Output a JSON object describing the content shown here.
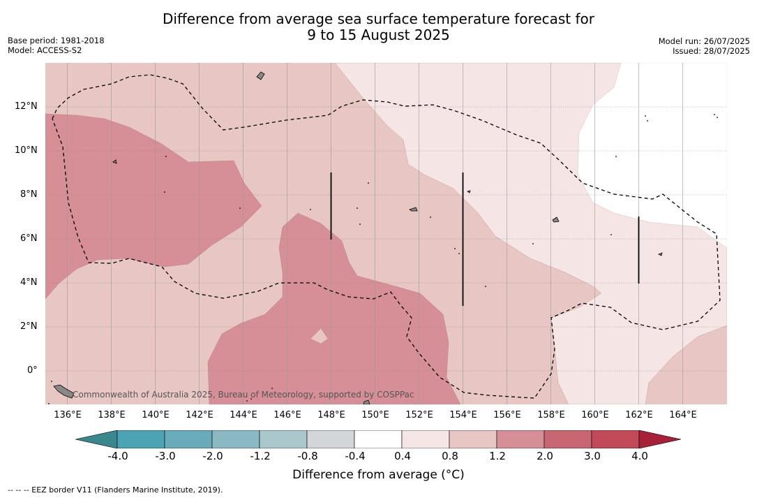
{
  "header": {
    "title_line1": "Difference from average sea surface temperature forecast for",
    "title_line2": "9 to 15 August 2025",
    "base_period": "Base period: 1981-2018",
    "model": "Model: ACCESS-S2",
    "model_run": "Model run: 26/07/2025",
    "issued": "Issued: 28/07/2025"
  },
  "map": {
    "lon_labels": [
      "136°E",
      "138°E",
      "140°E",
      "142°E",
      "144°E",
      "146°E",
      "148°E",
      "150°E",
      "152°E",
      "154°E",
      "156°E",
      "158°E",
      "160°E",
      "162°E",
      "164°E"
    ],
    "lat_labels": [
      "12°N",
      "10°N",
      "8°N",
      "6°N",
      "4°N",
      "2°N",
      "0°"
    ],
    "copyright": "Commonwealth of Australia 2025, Bureau of Meteorology, supported by COSPPac",
    "extent": {
      "lon_min": 135,
      "lon_max": 166,
      "lat_min": -1.5,
      "lat_max": 14
    }
  },
  "colorbar": {
    "ticks": [
      "-4.0",
      "-3.0",
      "-2.0",
      "-1.2",
      "-0.8",
      "-0.4",
      "0.4",
      "0.8",
      "1.2",
      "2.0",
      "3.0",
      "4.0"
    ],
    "colors": [
      "#4ba3b4",
      "#69abba",
      "#8ab8c3",
      "#aac8cc",
      "#d2d6d8",
      "#ffffff",
      "#f5e6e5",
      "#e7c6c3",
      "#d68f97",
      "#c86772",
      "#c04a58"
    ],
    "under_color": "#3a8790",
    "over_color": "#a81f38",
    "label": "Difference from average (°C)"
  },
  "footer": {
    "legend": "--  --  -- EEZ border V11 (Flanders Marine Institute, 2019)."
  }
}
